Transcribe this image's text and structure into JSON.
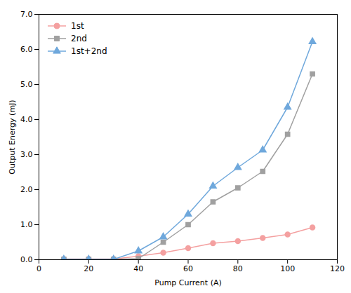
{
  "chart_data": {
    "type": "line",
    "xlabel": "Pump Current (A)",
    "ylabel": "Output Energy (mJ)",
    "x": [
      10,
      20,
      30,
      40,
      50,
      60,
      70,
      80,
      90,
      100,
      110
    ],
    "series": [
      {
        "name": "1st",
        "color": "#F4A0A0",
        "marker": "circle",
        "line_style": "solid",
        "values": [
          0.02,
          0.02,
          0.02,
          0.1,
          0.2,
          0.33,
          0.47,
          0.53,
          0.62,
          0.72,
          0.92
        ]
      },
      {
        "name": "2nd",
        "color": "#A0A0A0",
        "marker": "square",
        "line_style": "solid",
        "values": [
          0.01,
          0.01,
          0.01,
          0.03,
          0.5,
          1.0,
          1.65,
          2.05,
          2.52,
          3.58,
          5.3
        ]
      },
      {
        "name": "1st+2nd",
        "color": "#6FA8DC",
        "marker": "triangle",
        "line_style": "solid",
        "values": [
          0.01,
          0.01,
          0.01,
          0.25,
          0.65,
          1.3,
          2.1,
          2.63,
          3.13,
          4.35,
          6.22
        ]
      }
    ],
    "xlim": [
      0,
      120
    ],
    "ylim": [
      0,
      7
    ],
    "xticks": [
      0,
      20,
      40,
      60,
      80,
      100,
      120
    ],
    "yticks": [
      0,
      1,
      2,
      3,
      4,
      5,
      6,
      7
    ],
    "grid": false,
    "legend": "upper left"
  }
}
